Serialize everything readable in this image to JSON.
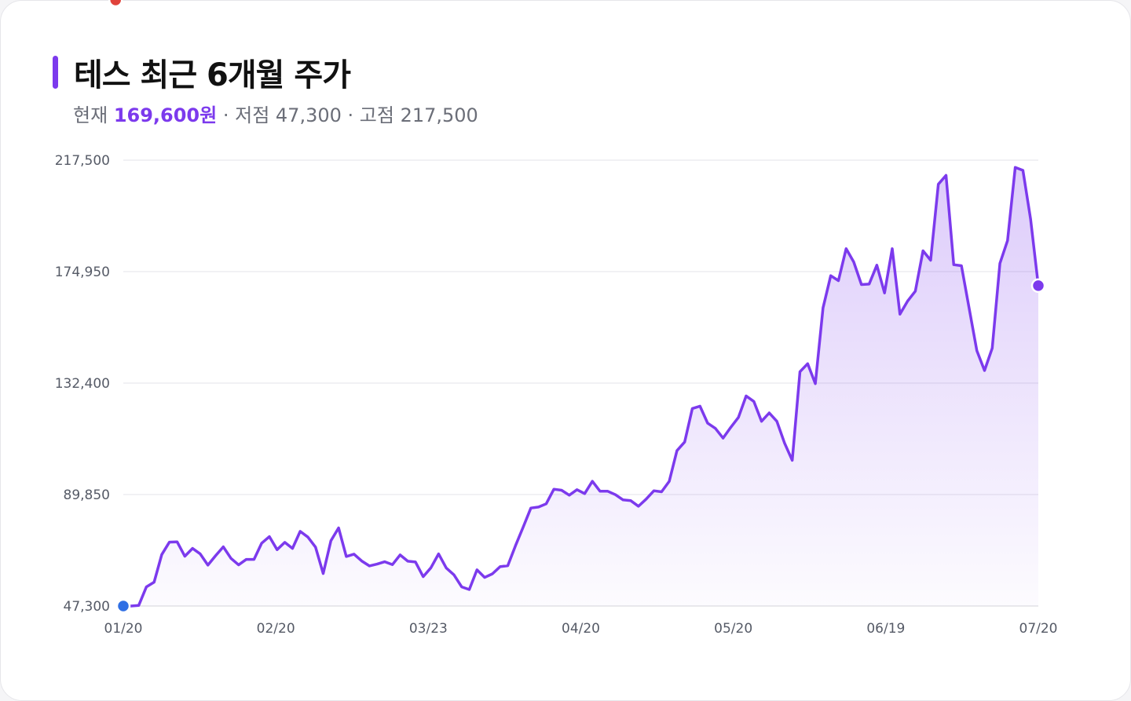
{
  "header": {
    "title": "테스 최근 6개월 주가",
    "current_label": "현재",
    "current_value": "169,600원",
    "low_text": "· 저점 47,300",
    "high_text": "· 고점 217,500"
  },
  "colors": {
    "accent": "#7c3aed",
    "line": "#7c3aed",
    "start_point": "#2f6fe4",
    "high_point": "#e0433b",
    "current_point": "#7c3aed",
    "grid": "#e3e3e8"
  },
  "chart_data": {
    "type": "line",
    "title": "테스 최근 6개월 주가",
    "xlabel": "",
    "ylabel": "",
    "ylim": [
      47300,
      217500
    ],
    "yticks": [
      217500,
      174950,
      132400,
      89850,
      47300
    ],
    "ytick_labels": [
      "217,500",
      "174,950",
      "132,400",
      "89,850",
      "47,300"
    ],
    "xtick_labels": [
      "01/20",
      "02/20",
      "03/23",
      "04/20",
      "05/20",
      "06/19",
      "07/20"
    ],
    "grid": true,
    "legend": "none",
    "series": [
      {
        "values": [
          47300,
          47300,
          47500,
          54600,
          56400,
          66900,
          71700,
          71800,
          66300,
          69300,
          67200,
          62900,
          66500,
          69900,
          65500,
          63000,
          65100,
          65100,
          71300,
          73800,
          68800,
          71600,
          69300,
          75800,
          73600,
          69800,
          59700,
          72200,
          77100,
          66200,
          67100,
          64500,
          62600,
          63300,
          64200,
          63100,
          66800,
          64400,
          64100,
          58500,
          61900,
          67200,
          61800,
          59200,
          54600,
          53600,
          61100,
          58200,
          59600,
          62300,
          62700,
          70300,
          77400,
          84700,
          85100,
          86300,
          91900,
          91500,
          89600,
          91700,
          90200,
          94900,
          91100,
          91100,
          89800,
          87800,
          87500,
          85400,
          88100,
          91300,
          90900,
          94900,
          106600,
          109900,
          122700,
          123600,
          117100,
          115100,
          111400,
          115500,
          119300,
          127500,
          125400,
          117800,
          121000,
          117800,
          109500,
          102900,
          136700,
          139800,
          132200,
          161100,
          173400,
          171500,
          183700,
          178600,
          170000,
          170200,
          177400,
          166800,
          183700,
          158700,
          163700,
          167500,
          182900,
          179300,
          208300,
          211700,
          177600,
          177200,
          161000,
          144800,
          137200,
          145700,
          178100,
          186800,
          214700,
          213600,
          194900,
          169600
        ]
      }
    ],
    "markers": {
      "start": 47300,
      "high": 217500,
      "current": 169600
    }
  }
}
